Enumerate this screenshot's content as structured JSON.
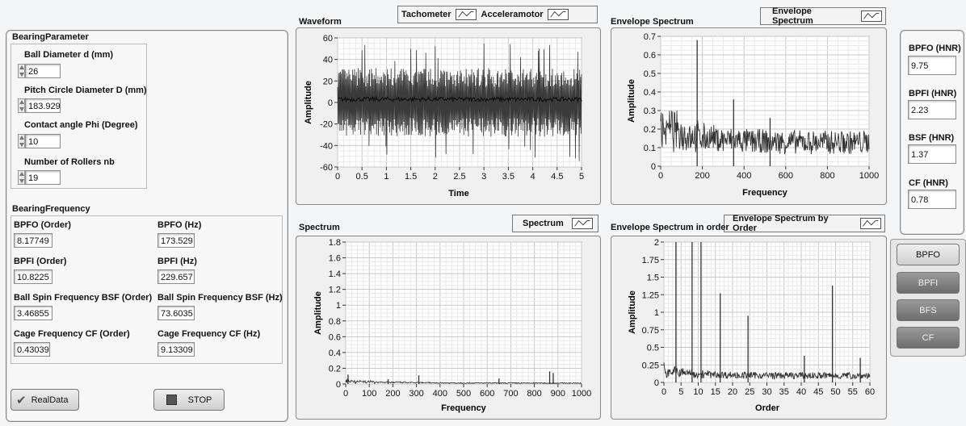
{
  "bearing_parameter": {
    "title": "BearingParameter",
    "ball_diameter": {
      "label": "Ball Diameter d (mm)",
      "value": "26"
    },
    "pitch_diameter": {
      "label": "Pitch Circle Diameter D (mm)",
      "value": "183.929"
    },
    "contact_angle": {
      "label": "Contact angle Phi (Degree)",
      "value": "10"
    },
    "num_rollers": {
      "label": "Number of Rollers nb",
      "value": "19"
    }
  },
  "bearing_frequency": {
    "title": "BearingFrequency",
    "bpfo_order": {
      "label": "BPFO (Order)",
      "value": "8.17749"
    },
    "bpfo_hz": {
      "label": "BPFO (Hz)",
      "value": "173.529"
    },
    "bpfi_order": {
      "label": "BPFI (Order)",
      "value": "10.8225"
    },
    "bpfi_hz": {
      "label": "BPFI (Hz)",
      "value": "229.657"
    },
    "bsf_order": {
      "label": "Ball Spin Frequency BSF (Order)",
      "value": "3.46855"
    },
    "bsf_hz": {
      "label": "Ball Spin Frequency BSF (Hz)",
      "value": "73.6035"
    },
    "cf_order": {
      "label": "Cage Frequency CF (Order)",
      "value": "0.43039"
    },
    "cf_hz": {
      "label": "Cage Frequency CF (Hz)",
      "value": "9.13309"
    }
  },
  "buttons": {
    "realdata": "RealData",
    "stop": "STOP"
  },
  "hnr": {
    "bpfo": {
      "label": "BPFO (HNR)",
      "value": "9.75"
    },
    "bpfi": {
      "label": "BPFI (HNR)",
      "value": "2.23"
    },
    "bsf": {
      "label": "BSF (HNR)",
      "value": "1.37"
    },
    "cf": {
      "label": "CF (HNR)",
      "value": "0.78"
    }
  },
  "selectors": {
    "bpfo": "BPFO",
    "bpfi": "BPFI",
    "bfs": "BFS",
    "cf": "CF"
  },
  "legends": {
    "tachometer": "Tachometer",
    "accelerometer": "Acceleramotor",
    "spectrum": "Spectrum",
    "envelope": "Envelope Spectrum",
    "envelope_order": "Envelope Spectrum by Order"
  },
  "chart_data": [
    {
      "id": "waveform",
      "type": "line",
      "title": "Waveform",
      "xlabel": "Time",
      "ylabel": "Amplitude",
      "xlim": [
        0,
        5
      ],
      "ylim": [
        -60,
        60
      ],
      "grid": true,
      "xticks": [
        "0",
        "0.5",
        "1",
        "1.5",
        "2",
        "2.5",
        "3",
        "3.5",
        "4",
        "4.5",
        "5"
      ],
      "yticks": [
        "-60",
        "-40",
        "-20",
        "0",
        "20",
        "40",
        "60"
      ],
      "series": [
        {
          "envelope_upper": 32,
          "envelope_lower": -32,
          "peak_upper": 55,
          "peak_lower": -52,
          "tacho_level": 3
        }
      ]
    },
    {
      "id": "envelope",
      "type": "line",
      "title": "Envelope Spectrum",
      "xlabel": "Frequency",
      "ylabel": "Amplitude",
      "xlim": [
        0,
        1000
      ],
      "ylim": [
        0,
        0.7
      ],
      "grid": true,
      "xticks": [
        "0",
        "200",
        "400",
        "600",
        "800",
        "1000"
      ],
      "yticks": [
        "0",
        "0.1",
        "0.2",
        "0.3",
        "0.4",
        "0.5",
        "0.6",
        "0.7"
      ],
      "peaks": [
        {
          "x": 175,
          "y": 0.68
        },
        {
          "x": 350,
          "y": 0.36
        },
        {
          "x": 525,
          "y": 0.26
        }
      ]
    },
    {
      "id": "spectrum",
      "type": "line",
      "title": "Spectrum",
      "xlabel": "Frequency",
      "ylabel": "Amplitude",
      "xlim": [
        0,
        1000
      ],
      "ylim": [
        0,
        1.8
      ],
      "grid": true,
      "xticks": [
        "0",
        "100",
        "200",
        "300",
        "400",
        "500",
        "600",
        "700",
        "800",
        "900",
        "1000"
      ],
      "yticks": [
        "0",
        "0.2",
        "0.4",
        "0.6",
        "0.8",
        "1",
        "1.2",
        "1.4",
        "1.6",
        "1.8"
      ],
      "peaks": [
        {
          "x": 10,
          "y": 0.12
        },
        {
          "x": 180,
          "y": 0.06
        },
        {
          "x": 310,
          "y": 0.11
        },
        {
          "x": 650,
          "y": 0.07
        },
        {
          "x": 865,
          "y": 0.16
        },
        {
          "x": 880,
          "y": 0.14
        }
      ]
    },
    {
      "id": "envelope_order",
      "type": "line",
      "title": "Envelope Spectrum in order",
      "xlabel": "Order",
      "ylabel": "Amplitude",
      "xlim": [
        0,
        60
      ],
      "ylim": [
        0,
        2
      ],
      "grid": true,
      "xticks": [
        "0",
        "5",
        "10",
        "15",
        "20",
        "25",
        "30",
        "35",
        "40",
        "45",
        "50",
        "55",
        "60"
      ],
      "yticks": [
        "0",
        "0.25",
        "0.5",
        "0.75",
        "1",
        "1.25",
        "1.5",
        "1.75",
        "2"
      ],
      "peaks": [
        {
          "x": 3.5,
          "y": 2.0
        },
        {
          "x": 8.2,
          "y": 2.0
        },
        {
          "x": 10.8,
          "y": 2.0
        },
        {
          "x": 16.4,
          "y": 1.27
        },
        {
          "x": 24.5,
          "y": 0.95
        },
        {
          "x": 40.9,
          "y": 0.38
        },
        {
          "x": 49.1,
          "y": 1.38
        },
        {
          "x": 57.2,
          "y": 0.35
        }
      ]
    }
  ]
}
